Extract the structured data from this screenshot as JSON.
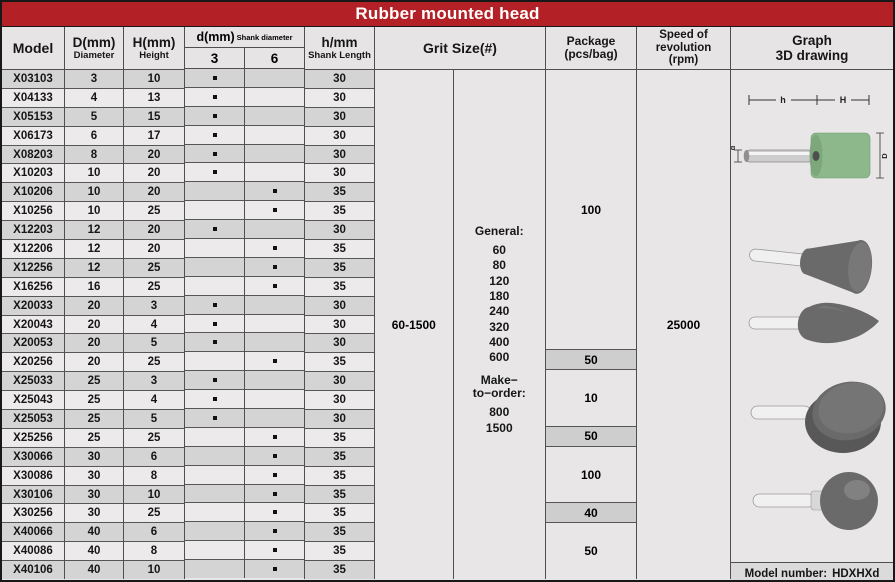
{
  "title": "Rubber mounted head",
  "colors": {
    "accent_red": "#b32025",
    "head_green": "#8cb88c",
    "head_grey": "#6a6a6a",
    "shank_white": "#f0f0f0",
    "shank_silver": "#cdcdcd",
    "row_dark": "#d5d4d4",
    "row_light": "#eceaea"
  },
  "header": {
    "model": "Model",
    "d_top": "D(mm)",
    "d_sub": "Diameter",
    "h_top": "H(mm)",
    "h_sub": "Height",
    "shank_d_top": "d(mm)",
    "shank_d_note": "Shank diameter",
    "shank_3": "3",
    "shank_6": "6",
    "shank_len_top": "h/mm",
    "shank_len_sub": "Shank Length",
    "grit": "Grit Size(#)",
    "package_line1": "Package",
    "package_line2": "(pcs/bag)",
    "speed_line1": "Speed of",
    "speed_line2": "revolution",
    "speed_line3": "(rpm)",
    "graph_line1": "Graph",
    "graph_line2": "3D drawing"
  },
  "rows": [
    {
      "model": "X03103",
      "d": "3",
      "h": "10",
      "shank3": true,
      "shank6": false,
      "len": "30"
    },
    {
      "model": "X04133",
      "d": "4",
      "h": "13",
      "shank3": true,
      "shank6": false,
      "len": "30"
    },
    {
      "model": "X05153",
      "d": "5",
      "h": "15",
      "shank3": true,
      "shank6": false,
      "len": "30"
    },
    {
      "model": "X06173",
      "d": "6",
      "h": "17",
      "shank3": true,
      "shank6": false,
      "len": "30"
    },
    {
      "model": "X08203",
      "d": "8",
      "h": "20",
      "shank3": true,
      "shank6": false,
      "len": "30"
    },
    {
      "model": "X10203",
      "d": "10",
      "h": "20",
      "shank3": true,
      "shank6": false,
      "len": "30"
    },
    {
      "model": "X10206",
      "d": "10",
      "h": "20",
      "shank3": false,
      "shank6": true,
      "len": "35"
    },
    {
      "model": "X10256",
      "d": "10",
      "h": "25",
      "shank3": false,
      "shank6": true,
      "len": "35"
    },
    {
      "model": "X12203",
      "d": "12",
      "h": "20",
      "shank3": true,
      "shank6": false,
      "len": "30"
    },
    {
      "model": "X12206",
      "d": "12",
      "h": "20",
      "shank3": false,
      "shank6": true,
      "len": "35"
    },
    {
      "model": "X12256",
      "d": "12",
      "h": "25",
      "shank3": false,
      "shank6": true,
      "len": "35"
    },
    {
      "model": "X16256",
      "d": "16",
      "h": "25",
      "shank3": false,
      "shank6": true,
      "len": "35"
    },
    {
      "model": "X20033",
      "d": "20",
      "h": "3",
      "shank3": true,
      "shank6": false,
      "len": "30"
    },
    {
      "model": "X20043",
      "d": "20",
      "h": "4",
      "shank3": true,
      "shank6": false,
      "len": "30"
    },
    {
      "model": "X20053",
      "d": "20",
      "h": "5",
      "shank3": true,
      "shank6": false,
      "len": "30"
    },
    {
      "model": "X20256",
      "d": "20",
      "h": "25",
      "shank3": false,
      "shank6": true,
      "len": "35"
    },
    {
      "model": "X25033",
      "d": "25",
      "h": "3",
      "shank3": true,
      "shank6": false,
      "len": "30"
    },
    {
      "model": "X25043",
      "d": "25",
      "h": "4",
      "shank3": true,
      "shank6": false,
      "len": "30"
    },
    {
      "model": "X25053",
      "d": "25",
      "h": "5",
      "shank3": true,
      "shank6": false,
      "len": "30"
    },
    {
      "model": "X25256",
      "d": "25",
      "h": "25",
      "shank3": false,
      "shank6": true,
      "len": "35"
    },
    {
      "model": "X30066",
      "d": "30",
      "h": "6",
      "shank3": false,
      "shank6": true,
      "len": "35"
    },
    {
      "model": "X30086",
      "d": "30",
      "h": "8",
      "shank3": false,
      "shank6": true,
      "len": "35"
    },
    {
      "model": "X30106",
      "d": "30",
      "h": "10",
      "shank3": false,
      "shank6": true,
      "len": "35"
    },
    {
      "model": "X30256",
      "d": "30",
      "h": "25",
      "shank3": false,
      "shank6": true,
      "len": "35"
    },
    {
      "model": "X40066",
      "d": "40",
      "h": "6",
      "shank3": false,
      "shank6": true,
      "len": "35"
    },
    {
      "model": "X40086",
      "d": "40",
      "h": "8",
      "shank3": false,
      "shank6": true,
      "len": "35"
    },
    {
      "model": "X40106",
      "d": "40",
      "h": "10",
      "shank3": false,
      "shank6": true,
      "len": "35"
    }
  ],
  "grit": {
    "range": "60-1500",
    "general_label": "General:",
    "general_values": [
      "60",
      "80",
      "120",
      "180",
      "240",
      "320",
      "400",
      "600"
    ],
    "mto_label_line1": "Make−",
    "mto_label_line2": "to−order:",
    "mto_values": [
      "800",
      "1500"
    ]
  },
  "package_groups": [
    {
      "value": "100",
      "rows": 15,
      "shaded": false
    },
    {
      "value": "50",
      "rows": 1,
      "shaded": true
    },
    {
      "value": "10",
      "rows": 3,
      "shaded": false
    },
    {
      "value": "50",
      "rows": 1,
      "shaded": true
    },
    {
      "value": "100",
      "rows": 3,
      "shaded": false
    },
    {
      "value": "40",
      "rows": 1,
      "shaded": true
    },
    {
      "value": "50",
      "rows": 3,
      "shaded": false
    }
  ],
  "speed": "25000",
  "graph": {
    "dim_h": "h",
    "dim_H": "H",
    "dim_d": "d",
    "dim_D": "D",
    "footer_label": "Model number:",
    "footer_value": "HDXHXd"
  }
}
